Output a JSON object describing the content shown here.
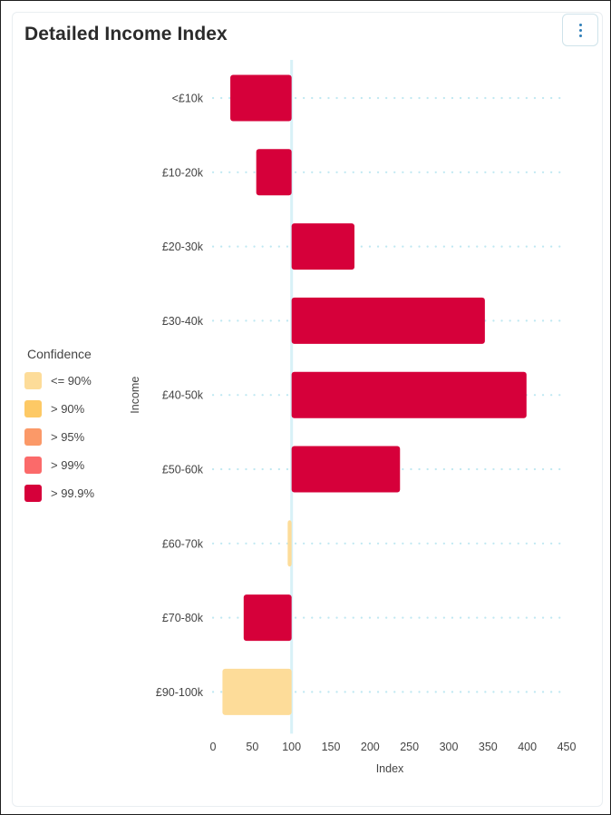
{
  "card": {
    "title": "Detailed Income Index",
    "menu_icon": "kebab-vertical-icon"
  },
  "legend": {
    "title": "Confidence",
    "items": [
      {
        "label": "<= 90%",
        "color": "#fddc99"
      },
      {
        "label": "> 90%",
        "color": "#fdc965"
      },
      {
        "label": "> 95%",
        "color": "#fb9968"
      },
      {
        "label": "> 99%",
        "color": "#fb6a6a"
      },
      {
        "label": "> 99.9%",
        "color": "#d6003a"
      }
    ]
  },
  "chart_data": {
    "type": "bar",
    "orientation": "horizontal",
    "title": "Detailed Income Index",
    "xlabel": "Index",
    "ylabel": "Income",
    "xlim": [
      0,
      450
    ],
    "xticks": [
      0,
      50,
      100,
      150,
      200,
      250,
      300,
      350,
      400,
      450
    ],
    "baseline": 100,
    "categories": [
      "<£10k",
      "£10-20k",
      "£20-30k",
      "£30-40k",
      "£40-50k",
      "£50-60k",
      "£60-70k",
      "£70-80k",
      "£90-100k"
    ],
    "values": [
      22,
      55,
      180,
      346,
      399,
      238,
      95,
      39,
      12
    ],
    "confidence": [
      "> 99.9%",
      "> 99.9%",
      "> 99.9%",
      "> 99.9%",
      "> 99.9%",
      "> 99.9%",
      "<= 90%",
      "> 99.9%",
      "<= 90%"
    ],
    "grid_color": "#bfe8f2",
    "baseline_color": "#d8f1f7",
    "legend_position": "left"
  }
}
